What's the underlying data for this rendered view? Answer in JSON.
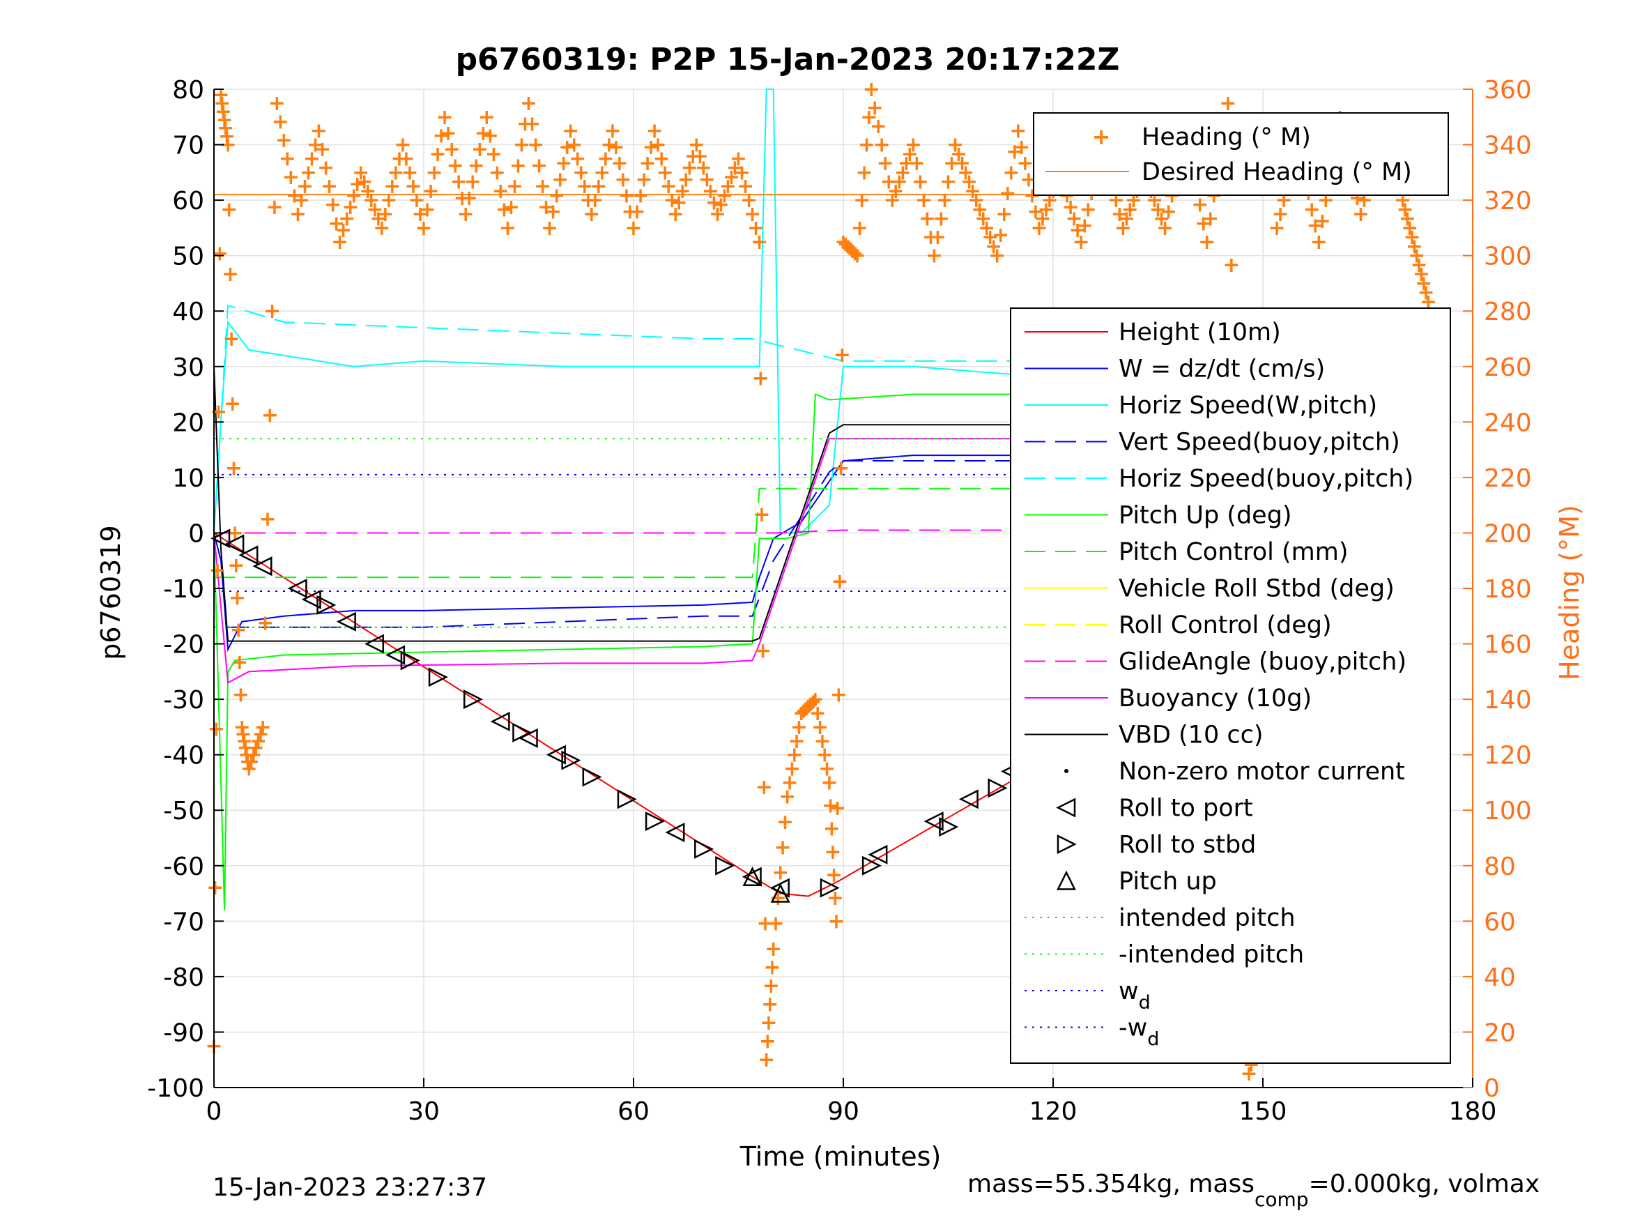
{
  "chart_data": {
    "type": "line",
    "title": "p6760319: P2P 15-Jan-2023 20:17:22Z",
    "xlabel": "Time (minutes)",
    "ylabel": "p6760319",
    "ylabel_right": "Heading (°M)",
    "xlim": [
      0,
      180
    ],
    "ylim": [
      -100,
      80
    ],
    "ylim_right": [
      0,
      360
    ],
    "x_ticks": [
      "0",
      "30",
      "60",
      "90",
      "120",
      "150",
      "180"
    ],
    "y_ticks": [
      "-100",
      "-90",
      "-80",
      "-70",
      "-60",
      "-50",
      "-40",
      "-30",
      "-20",
      "-10",
      "0",
      "10",
      "20",
      "30",
      "40",
      "50",
      "60",
      "70",
      "80"
    ],
    "y_ticks_right": [
      "0",
      "20",
      "40",
      "60",
      "80",
      "100",
      "120",
      "140",
      "160",
      "180",
      "200",
      "220",
      "240",
      "260",
      "280",
      "300",
      "320",
      "340",
      "360"
    ],
    "grid": true,
    "legend_heading": [
      {
        "label": "Heading (° M)",
        "color": "#ff7f0e",
        "style": "plus"
      },
      {
        "label": "Desired Heading (° M)",
        "color": "#ff7f0e",
        "style": "line"
      }
    ],
    "legend_main": [
      {
        "label": "Height (10m)",
        "color": "#ff0000",
        "style": "solid"
      },
      {
        "label": "W = dz/dt (cm/s)",
        "color": "#0000ff",
        "style": "solid"
      },
      {
        "label": "Horiz Speed(W,pitch)",
        "color": "#00ffff",
        "style": "solid"
      },
      {
        "label": "Vert Speed(buoy,pitch)",
        "color": "#0000ff",
        "style": "dashed"
      },
      {
        "label": "Horiz Speed(buoy,pitch)",
        "color": "#00ffff",
        "style": "dashed"
      },
      {
        "label": "Pitch Up (deg)",
        "color": "#00ff00",
        "style": "solid"
      },
      {
        "label": "Pitch Control (mm)",
        "color": "#00ff00",
        "style": "dashed"
      },
      {
        "label": "Vehicle Roll Stbd (deg)",
        "color": "#ffff00",
        "style": "solid"
      },
      {
        "label": "Roll Control (deg)",
        "color": "#ffff00",
        "style": "dashed"
      },
      {
        "label": "GlideAngle (buoy,pitch)",
        "color": "#ff00ff",
        "style": "dashed"
      },
      {
        "label": "Buoyancy (10g)",
        "color": "#ff00ff",
        "style": "solid"
      },
      {
        "label": "VBD (10 cc)",
        "color": "#000000",
        "style": "solid"
      },
      {
        "label": "Non-zero motor current",
        "color": "#000000",
        "style": "dot"
      },
      {
        "label": "Roll to port",
        "color": "#000000",
        "style": "tri-left"
      },
      {
        "label": "Roll to stbd",
        "color": "#000000",
        "style": "tri-right"
      },
      {
        "label": "Pitch up",
        "color": "#000000",
        "style": "tri-up"
      },
      {
        "label": "intended pitch",
        "color": "#00ff00",
        "style": "dotted"
      },
      {
        "label": "-intended pitch",
        "color": "#00ff00",
        "style": "dotted"
      },
      {
        "label": "w",
        "sub": "d",
        "color": "#0000ff",
        "style": "dotted"
      },
      {
        "label": "-w",
        "sub": "d",
        "color": "#0000ff",
        "style": "dotted"
      }
    ],
    "series": [
      {
        "name": "Height (10m)",
        "x": [
          0,
          77,
          81,
          85,
          89,
          174
        ],
        "y": [
          0,
          -62,
          -65,
          -65.5,
          -63,
          -1
        ]
      },
      {
        "name": "W = dz/dt (cm/s)",
        "x": [
          0,
          1,
          2,
          4,
          10,
          20,
          30,
          50,
          70,
          77,
          78,
          80,
          84,
          90,
          100,
          120,
          140,
          160,
          172,
          174
        ],
        "y": [
          0,
          -5,
          -21,
          -16,
          -15,
          -14,
          -14,
          -13.5,
          -13,
          -12.5,
          -8,
          -1,
          2,
          13,
          14,
          14,
          13.5,
          14,
          14,
          6
        ]
      },
      {
        "name": "Horiz Speed(W,pitch)",
        "x": [
          0,
          1,
          2,
          5,
          10,
          20,
          30,
          50,
          70,
          78,
          79,
          80,
          81,
          82,
          84,
          88,
          90,
          100,
          120,
          140,
          160,
          172,
          174
        ],
        "y": [
          0,
          20,
          38,
          33,
          32,
          30,
          31,
          30,
          30,
          30,
          80,
          80,
          0,
          0,
          0,
          5,
          30,
          30,
          28,
          27,
          26,
          25,
          15
        ]
      },
      {
        "name": "Vert Speed(buoy,pitch)",
        "x": [
          2,
          10,
          30,
          50,
          70,
          77,
          80,
          88,
          90,
          120,
          150,
          172
        ],
        "y": [
          -17,
          -17,
          -17,
          -16,
          -15,
          -15,
          -5,
          11,
          13,
          13,
          13,
          13
        ]
      },
      {
        "name": "Horiz Speed(buoy,pitch)",
        "x": [
          0,
          2,
          10,
          30,
          50,
          70,
          77,
          90,
          120,
          150,
          172
        ],
        "y": [
          0,
          41,
          38,
          37,
          36,
          35,
          35,
          31,
          31,
          30,
          30
        ]
      },
      {
        "name": "Pitch Up (deg)",
        "x": [
          0,
          1,
          1.5,
          2,
          3,
          10,
          30,
          50,
          70,
          77,
          78,
          82,
          85,
          86,
          88,
          100,
          120,
          150,
          172,
          174
        ],
        "y": [
          0,
          -45,
          -68,
          -25,
          -23,
          -22,
          -21.5,
          -21,
          -20.5,
          -20,
          -1,
          -1,
          0,
          25,
          24,
          25,
          25,
          25,
          25,
          28
        ]
      },
      {
        "name": "Pitch Control (mm)",
        "x": [
          0,
          77,
          78,
          90,
          174
        ],
        "y": [
          -8,
          -8,
          8,
          8,
          8
        ]
      },
      {
        "name": "Buoyancy (10g)",
        "x": [
          0,
          2,
          5,
          20,
          50,
          70,
          77,
          78,
          88,
          90,
          150,
          172
        ],
        "y": [
          0,
          -27,
          -25,
          -24,
          -23.5,
          -23.5,
          -23,
          -20,
          17,
          17,
          17,
          15
        ]
      },
      {
        "name": "VBD (10 cc)",
        "x": [
          0,
          1,
          2,
          77,
          78,
          88,
          90,
          170,
          172
        ],
        "y": [
          30,
          -3,
          -19.5,
          -19.5,
          -19,
          18,
          19.5,
          19.5,
          19.5
        ]
      },
      {
        "name": "GlideAngle (buoy,pitch)",
        "x": [
          0,
          80,
          90,
          174
        ],
        "y": [
          0,
          0,
          0.5,
          0.5
        ]
      },
      {
        "name": "intended pitch",
        "x": [
          0,
          174
        ],
        "y": [
          17,
          17
        ]
      },
      {
        "name": "-intended pitch",
        "x": [
          0,
          174
        ],
        "y": [
          -17,
          -17
        ]
      },
      {
        "name": "w_d",
        "x": [
          0,
          174
        ],
        "y": [
          10.5,
          10.5
        ]
      },
      {
        "name": "-w_d",
        "x": [
          0,
          174
        ],
        "y": [
          -10.5,
          -10.5
        ]
      },
      {
        "name": "Desired Heading (° M)",
        "axis": "right",
        "x": [
          0,
          174
        ],
        "y": [
          322,
          322
        ]
      },
      {
        "name": "Heading (° M)",
        "axis": "right",
        "x": [
          0,
          1,
          2,
          3,
          4,
          5,
          7,
          9,
          12,
          15,
          18,
          21,
          24,
          27,
          30,
          33,
          36,
          39,
          42,
          45,
          48,
          51,
          54,
          57,
          60,
          63,
          66,
          69,
          72,
          75,
          78,
          79,
          80,
          82,
          84,
          86,
          88,
          89,
          90,
          92,
          94,
          97,
          100,
          103,
          106,
          109,
          112,
          115,
          118,
          121,
          124,
          127,
          130,
          133,
          136,
          139,
          142,
          145,
          148,
          150,
          152,
          155,
          158,
          161,
          164,
          167,
          170,
          172,
          174
        ],
        "y": [
          15,
          358,
          340,
          200,
          130,
          115,
          130,
          355,
          315,
          345,
          305,
          330,
          310,
          340,
          310,
          350,
          315,
          350,
          310,
          355,
          310,
          345,
          315,
          345,
          310,
          345,
          315,
          340,
          315,
          335,
          305,
          10,
          50,
          105,
          135,
          140,
          110,
          60,
          305,
          300,
          360,
          320,
          340,
          300,
          340,
          320,
          300,
          345,
          310,
          330,
          305,
          340,
          310,
          330,
          310,
          345,
          305,
          355,
          5,
          25,
          310,
          340,
          305,
          350,
          315,
          345,
          320,
          300,
          280
        ]
      }
    ],
    "markers": {
      "roll_port": [
        [
          1,
          -1
        ],
        [
          3,
          -2
        ],
        [
          5,
          -4
        ],
        [
          7,
          -6
        ],
        [
          12,
          -10
        ],
        [
          14,
          -12
        ],
        [
          19,
          -16
        ],
        [
          23,
          -20
        ],
        [
          26,
          -22
        ],
        [
          41,
          -34
        ],
        [
          45,
          -37
        ],
        [
          49,
          -40
        ],
        [
          66,
          -54
        ],
        [
          77,
          -62
        ],
        [
          81,
          -64
        ],
        [
          95,
          -58
        ],
        [
          103,
          -52
        ],
        [
          108,
          -48
        ],
        [
          114,
          -43
        ],
        [
          118,
          -38
        ],
        [
          124,
          -34
        ],
        [
          129,
          -30
        ],
        [
          136,
          -25
        ],
        [
          140,
          -23
        ],
        [
          146,
          -19
        ],
        [
          150,
          -16
        ],
        [
          155,
          -13
        ],
        [
          158,
          -12
        ],
        [
          163,
          -9
        ],
        [
          167,
          -6
        ]
      ],
      "roll_stbd": [
        [
          16,
          -13
        ],
        [
          28,
          -23
        ],
        [
          32,
          -26
        ],
        [
          37,
          -30
        ],
        [
          44,
          -36
        ],
        [
          51,
          -41
        ],
        [
          54,
          -44
        ],
        [
          59,
          -48
        ],
        [
          63,
          -52
        ],
        [
          70,
          -57
        ],
        [
          73,
          -60
        ],
        [
          88,
          -64
        ],
        [
          94,
          -60
        ],
        [
          105,
          -53
        ],
        [
          112,
          -46
        ],
        [
          120,
          -40
        ],
        [
          127,
          -35
        ],
        [
          133,
          -31
        ],
        [
          144,
          -20
        ],
        [
          152,
          -15
        ],
        [
          157,
          -13
        ],
        [
          161,
          -11
        ],
        [
          165,
          -8
        ],
        [
          174,
          -1
        ]
      ],
      "pitch_up": [
        [
          77,
          -62
        ],
        [
          81,
          -65
        ]
      ]
    }
  },
  "footer": {
    "left": "15-Jan-2023 23:27:37",
    "right_prefix": "mass=55.354kg, mass",
    "right_sub": "comp",
    "right_suffix": "=0.000kg, volmax"
  }
}
